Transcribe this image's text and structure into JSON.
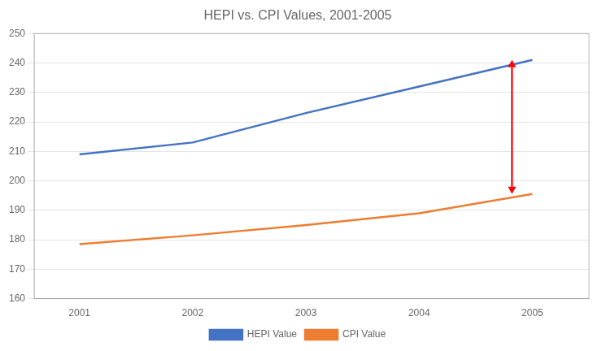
{
  "chart_data": {
    "type": "line",
    "title": "HEPI vs. CPI Values, 2001-2005",
    "x": [
      2001,
      2002,
      2003,
      2004,
      2005
    ],
    "series": [
      {
        "name": "HEPI Value",
        "color": "#4472C4",
        "values": [
          209,
          213,
          223,
          232,
          241
        ]
      },
      {
        "name": "CPI Value",
        "color": "#ED7D31",
        "values": [
          178.5,
          181.5,
          185,
          189,
          195.5
        ]
      }
    ],
    "xlim": [
      2000.6,
      2005.5
    ],
    "xticks": [
      2001,
      2002,
      2003,
      2004,
      2005
    ],
    "ylim": [
      160,
      250
    ],
    "yticks": [
      160,
      170,
      180,
      190,
      200,
      210,
      220,
      230,
      240,
      250
    ],
    "grid": "y",
    "legend": "bottom",
    "arrow": {
      "x": 2004.82,
      "y_from": 241,
      "y_to": 195.5,
      "color": "#FF0000"
    }
  }
}
